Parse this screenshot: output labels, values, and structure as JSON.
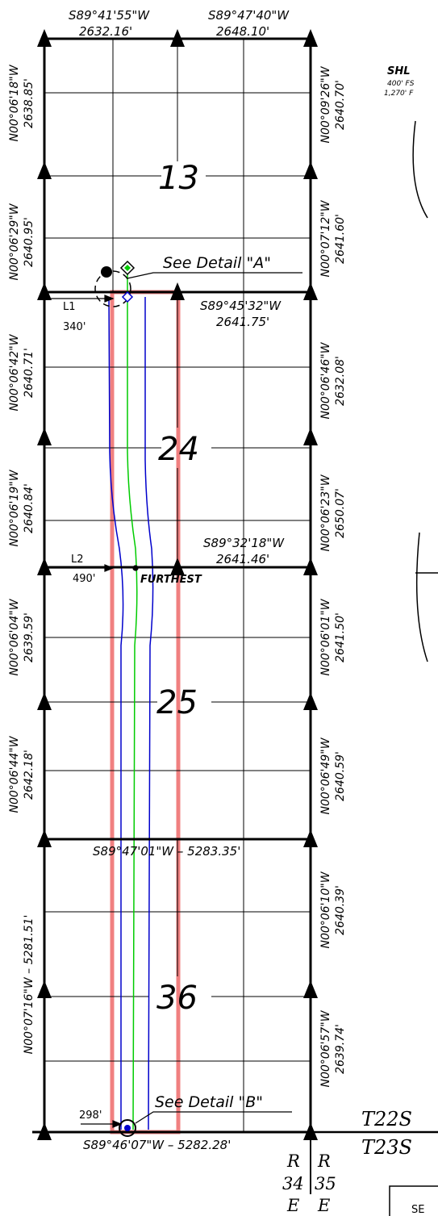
{
  "top_bearings": [
    {
      "bearing": "S89°41'55\"W",
      "distance": "2632.16'"
    },
    {
      "bearing": "S89°47'40\"W",
      "distance": "2648.10'"
    }
  ],
  "left_bearings": [
    {
      "bearing": "N00°06'18\"W",
      "distance": "2638.85'"
    },
    {
      "bearing": "N00°06'29\"W",
      "distance": "2640.95'"
    },
    {
      "bearing": "N00°06'42\"W",
      "distance": "2640.71'"
    },
    {
      "bearing": "N00°06'19\"W",
      "distance": "2640.84'"
    },
    {
      "bearing": "N00°06'04\"W",
      "distance": "2639.59'"
    },
    {
      "bearing": "N00°06'44\"W",
      "distance": "2642.18'"
    },
    {
      "text": "N00°07'16\"W – 5281.51'"
    }
  ],
  "right_bearings": [
    {
      "bearing": "N00°09'26\"W",
      "distance": "2640.70'"
    },
    {
      "bearing": "N00°07'12\"W",
      "distance": "2641.60'"
    },
    {
      "bearing": "N00°06'46\"W",
      "distance": "2632.08'"
    },
    {
      "bearing": "N00°06'23\"W",
      "distance": "2650.07'"
    },
    {
      "bearing": "N00°06'01\"W",
      "distance": "2641.50'"
    },
    {
      "bearing": "N00°06'49\"W",
      "distance": "2640.59'"
    },
    {
      "bearing": "N00°06'10\"W",
      "distance": "2640.39'"
    },
    {
      "bearing": "N00°06'57\"W",
      "distance": "2639.74'"
    }
  ],
  "interior_bearings": [
    {
      "bearing": "S89°45'32\"W",
      "distance": "2641.75'"
    },
    {
      "bearing": "S89°32'18\"W",
      "distance": "2641.46'"
    },
    {
      "text": "S89°47'01\"W – 5283.35'"
    },
    {
      "text": "S89°46'07\"W – 5282.28'"
    }
  ],
  "sections": [
    "13",
    "24",
    "25",
    "36"
  ],
  "details": {
    "a": "See Detail \"A\"",
    "b": "See Detail \"B\""
  },
  "callouts": {
    "l1": "L1",
    "l1_dist": "340'",
    "l2": "L2",
    "l2_dist": "490'",
    "furthest": "FURTHEST",
    "bottom_dist": "298'"
  },
  "shl": {
    "title": "SHL",
    "line1": "400' FS",
    "line2": "1,270' F"
  },
  "township": {
    "north": "T22S",
    "south": "T23S"
  },
  "range": {
    "r1": "R",
    "r2": "R",
    "n1": "34",
    "n2": "35",
    "e1": "E",
    "e2": "E"
  },
  "corner_label": "SE",
  "colors": {
    "lease_outline": "#f08080",
    "wellbore": "#00cc00",
    "setback": "#0000cc",
    "section_line": "#000000"
  }
}
